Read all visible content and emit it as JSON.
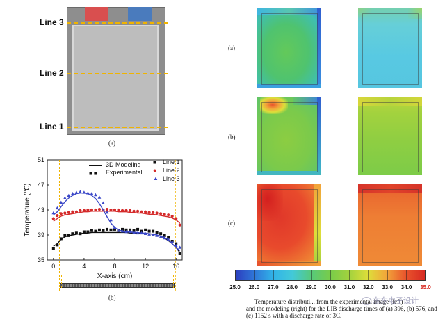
{
  "figure_a": {
    "line_labels": [
      "Line 3",
      "Line 2",
      "Line 1"
    ],
    "panel_label": "(a)",
    "tab_colors": [
      "#d94f4f",
      "#4a7bbd"
    ]
  },
  "figure_b": {
    "panel_label": "(b)",
    "legend": {
      "model": "3D Modeling",
      "experimental": "Experimental",
      "line1": "Line 1",
      "line2": "Line 2",
      "line3": "Line 3"
    }
  },
  "chart_data": {
    "type": "line",
    "title": "",
    "xlabel": "X-axis (cm)",
    "ylabel": "Temperature (℃)",
    "xlim": [
      -0.8,
      16.8
    ],
    "ylim": [
      35,
      51
    ],
    "xticks": [
      0,
      4,
      8,
      12,
      16
    ],
    "yticks": [
      35,
      39,
      43,
      47,
      51
    ],
    "x": [
      0,
      0.5,
      1,
      1.5,
      2,
      2.5,
      3,
      3.5,
      4,
      4.5,
      5,
      5.5,
      6,
      6.5,
      7,
      7.5,
      8,
      8.5,
      9,
      9.5,
      10,
      10.5,
      11,
      11.5,
      12,
      12.5,
      13,
      13.5,
      14,
      14.5,
      15,
      15.5,
      16,
      16.5
    ],
    "series": [
      {
        "name": "Line 1",
        "model": [
          37.2,
          37.6,
          38.3,
          38.7,
          38.9,
          39.0,
          39.1,
          39.2,
          39.3,
          39.3,
          39.4,
          39.4,
          39.4,
          39.4,
          39.4,
          39.4,
          39.4,
          39.4,
          39.4,
          39.4,
          39.3,
          39.3,
          39.3,
          39.3,
          39.2,
          39.2,
          39.1,
          39.0,
          38.8,
          38.5,
          38.1,
          37.6,
          37.0,
          36.2
        ],
        "experimental": [
          36.8,
          37.4,
          38.4,
          38.9,
          38.9,
          39.2,
          39.3,
          39.2,
          39.5,
          39.5,
          39.7,
          39.6,
          39.8,
          39.7,
          39.9,
          39.8,
          39.9,
          39.7,
          39.9,
          39.8,
          39.8,
          39.7,
          39.9,
          39.6,
          39.8,
          39.6,
          39.6,
          39.4,
          39.2,
          38.9,
          38.6,
          38.0,
          37.6,
          36.0
        ]
      },
      {
        "name": "Line 2",
        "model": [
          41.2,
          41.6,
          42.0,
          42.2,
          42.3,
          42.4,
          42.5,
          42.6,
          42.7,
          42.7,
          42.8,
          42.8,
          42.8,
          42.8,
          42.8,
          42.8,
          42.8,
          42.7,
          42.7,
          42.7,
          42.6,
          42.6,
          42.5,
          42.5,
          42.4,
          42.3,
          42.3,
          42.2,
          42.1,
          42.0,
          41.9,
          41.7,
          41.4,
          40.9
        ],
        "experimental": [
          41.6,
          42.1,
          42.4,
          42.5,
          42.6,
          42.7,
          42.7,
          42.9,
          42.9,
          43.0,
          43.0,
          43.0,
          43.1,
          43.0,
          43.1,
          43.0,
          43.0,
          43.0,
          42.9,
          42.9,
          42.9,
          42.8,
          42.8,
          42.7,
          42.7,
          42.6,
          42.6,
          42.5,
          42.4,
          42.3,
          42.2,
          42.0,
          41.6,
          40.6
        ]
      },
      {
        "name": "Line 3",
        "model": [
          42.2,
          42.7,
          43.5,
          44.3,
          44.9,
          45.3,
          45.6,
          45.7,
          45.7,
          45.6,
          45.3,
          44.8,
          44.0,
          43.0,
          41.9,
          40.9,
          40.2,
          39.8,
          39.6,
          39.5,
          39.5,
          39.4,
          39.4,
          39.3,
          39.3,
          39.2,
          39.1,
          39.0,
          38.8,
          38.6,
          38.2,
          37.6,
          37.0,
          36.5
        ],
        "experimental": [
          42.5,
          43.3,
          44.2,
          44.9,
          45.3,
          45.6,
          45.8,
          45.9,
          45.8,
          45.7,
          45.6,
          45.4,
          45.0,
          44.1,
          42.6,
          41.4,
          40.2,
          39.7,
          39.6,
          39.5,
          39.5,
          39.4,
          39.3,
          39.3,
          39.2,
          39.1,
          39.0,
          38.9,
          38.7,
          38.5,
          38.3,
          37.9,
          37.3,
          37.0
        ]
      }
    ]
  },
  "heatmaps": {
    "row_labels": [
      "(a)",
      "(b)",
      "(c)"
    ]
  },
  "colorbar": {
    "values": [
      "25.0",
      "26.0",
      "27.0",
      "28.0",
      "29.0",
      "30.0",
      "31.0",
      "32.0",
      "33.0",
      "34.0",
      "35.0"
    ],
    "colors": [
      "#2c3fbf",
      "#2f77d8",
      "#31b4e8",
      "#43c9d8",
      "#57c97a",
      "#78cc4a",
      "#a3d23e",
      "#dede3a",
      "#f2a33a",
      "#e8532c",
      "#d72a22"
    ]
  },
  "caption": {
    "line1": "Temperature distributi... from the experimental image (left)",
    "line2": "and the modeling (right) for the LIB discharge times of (a) 396, (b) 576, and",
    "line3": "(c) 1152 s with a discharge rate of 3C."
  },
  "watermark": "东东电子设计"
}
